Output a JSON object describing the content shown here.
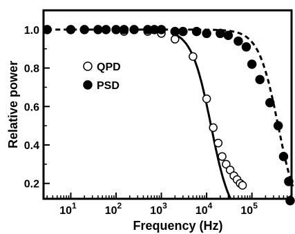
{
  "chart_data": {
    "type": "scatter",
    "xlabel": "Frequency (Hz)",
    "ylabel": "Relative power",
    "xscale": "log",
    "xlim": [
      2.5,
      750000
    ],
    "ylim": [
      0.12,
      1.1
    ],
    "x_ticks": [
      {
        "value": 10,
        "base": "10",
        "exp": "1"
      },
      {
        "value": 100,
        "base": "10",
        "exp": "2"
      },
      {
        "value": 1000,
        "base": "10",
        "exp": "3"
      },
      {
        "value": 10000,
        "base": "10",
        "exp": "4"
      },
      {
        "value": 100000,
        "base": "10",
        "exp": "5"
      }
    ],
    "y_ticks": [
      "0.2",
      "0.4",
      "0.6",
      "0.8",
      "1.0"
    ],
    "legend_position": "center-left",
    "series": [
      {
        "name": "QPD",
        "marker": "open-circle",
        "points": [
          [
            3,
            1.0
          ],
          [
            10,
            1.0
          ],
          [
            20,
            1.0
          ],
          [
            40,
            1.0
          ],
          [
            100,
            1.0
          ],
          [
            150,
            0.99
          ],
          [
            250,
            1.0
          ],
          [
            500,
            0.99
          ],
          [
            1000,
            0.98
          ],
          [
            2000,
            0.95
          ],
          [
            5000,
            0.86
          ],
          [
            10000,
            0.64
          ],
          [
            14000,
            0.49
          ],
          [
            18000,
            0.41
          ],
          [
            22000,
            0.34
          ],
          [
            27000,
            0.3
          ],
          [
            33000,
            0.27
          ],
          [
            40000,
            0.24
          ],
          [
            47000,
            0.22
          ],
          [
            55000,
            0.2
          ],
          [
            62000,
            0.19
          ]
        ],
        "fit": "solid"
      },
      {
        "name": "PSD",
        "marker": "filled-circle",
        "points": [
          [
            3,
            1.0
          ],
          [
            10,
            1.0
          ],
          [
            20,
            1.0
          ],
          [
            40,
            1.0
          ],
          [
            60,
            1.0
          ],
          [
            100,
            1.0
          ],
          [
            150,
            1.0
          ],
          [
            250,
            1.0
          ],
          [
            500,
            1.0
          ],
          [
            700,
            1.0
          ],
          [
            1000,
            1.0
          ],
          [
            2000,
            0.99
          ],
          [
            3000,
            0.99
          ],
          [
            6000,
            0.99
          ],
          [
            10000,
            0.98
          ],
          [
            20000,
            0.98
          ],
          [
            30000,
            0.97
          ],
          [
            50000,
            0.94
          ],
          [
            75000,
            0.91
          ],
          [
            100000,
            0.82
          ],
          [
            150000,
            0.74
          ],
          [
            250000,
            0.62
          ],
          [
            380000,
            0.5
          ],
          [
            500000,
            0.34
          ],
          [
            650000,
            0.21
          ],
          [
            800000,
            0.11
          ]
        ],
        "fit": "dashed"
      }
    ]
  }
}
